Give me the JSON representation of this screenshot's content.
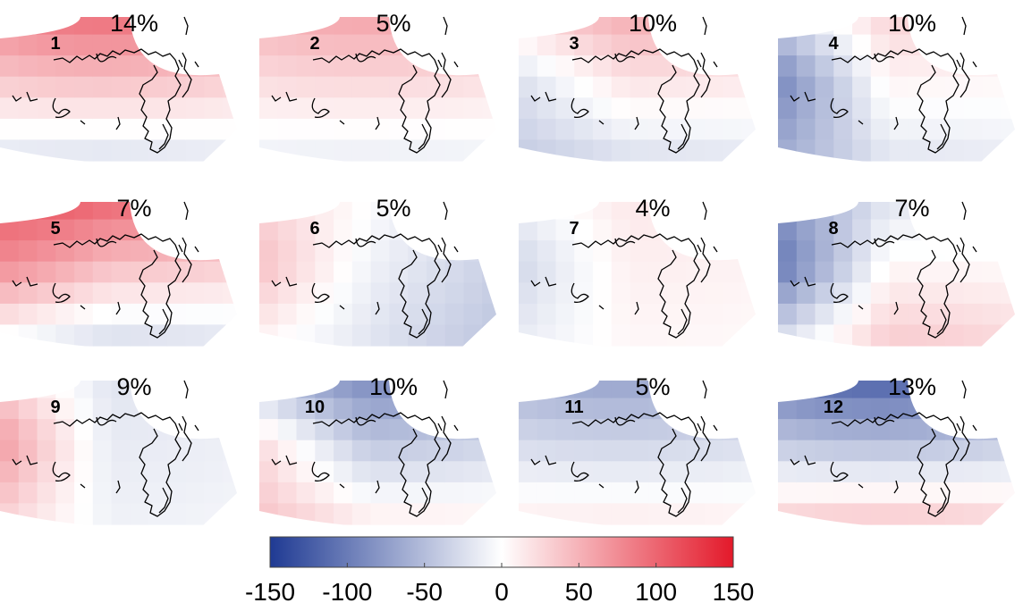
{
  "panels": [
    {
      "number": "1",
      "percent": "14%",
      "north": 95,
      "south": -25
    },
    {
      "number": "2",
      "percent": "5%",
      "north": 60,
      "south": -15
    },
    {
      "number": "3",
      "percent": "10%",
      "north": 55,
      "south": -25,
      "west": -40
    },
    {
      "number": "4",
      "percent": "10%",
      "north": 30,
      "south": -20,
      "west": -100
    },
    {
      "number": "5",
      "percent": "7%",
      "north": 100,
      "south": -30,
      "west": 40
    },
    {
      "number": "6",
      "percent": "5%",
      "north": 0,
      "south": -20,
      "west": 50,
      "east": -30
    },
    {
      "number": "7",
      "percent": "4%",
      "north": 15,
      "south": 5,
      "west": -40
    },
    {
      "number": "8",
      "percent": "7%",
      "north": -20,
      "south": 35,
      "west": -110
    },
    {
      "number": "9",
      "percent": "9%",
      "north": -20,
      "south": -10,
      "west": 80
    },
    {
      "number": "10",
      "percent": "10%",
      "north": -90,
      "south": 15,
      "west": 60
    },
    {
      "number": "11",
      "percent": "5%",
      "north": -70,
      "south": 15
    },
    {
      "number": "12",
      "percent": "13%",
      "north": -120,
      "south": 40
    }
  ],
  "colorbar": {
    "ticks": [
      "-150",
      "-100",
      "-50",
      "0",
      "50",
      "100",
      "150"
    ],
    "min": -150,
    "max": 150,
    "low_color": "#1f3a93",
    "mid_color": "#ffffff",
    "high_color": "#e3192a"
  }
}
